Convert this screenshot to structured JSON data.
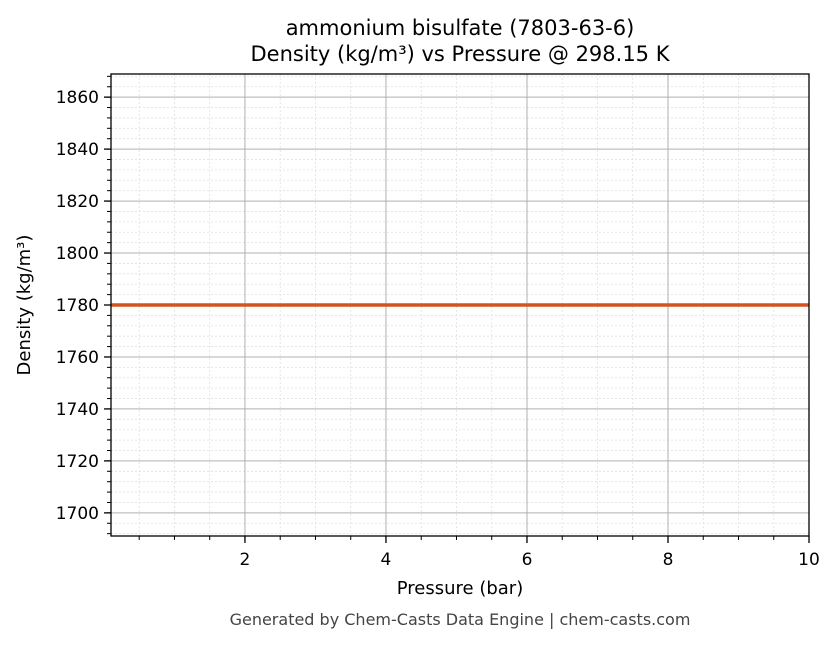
{
  "chart_data": {
    "type": "line",
    "title_line1": "ammonium bisulfate (7803-63-6)",
    "title_line2": "Density (kg/m³) vs Pressure @ 298.15 K",
    "xlabel": "Pressure (bar)",
    "ylabel": "Density (kg/m³)",
    "xlim": [
      0.1,
      10
    ],
    "ylim": [
      1691.1,
      1868.9
    ],
    "xticks": [
      2,
      4,
      6,
      8,
      10
    ],
    "yticks": [
      1700,
      1720,
      1740,
      1760,
      1780,
      1800,
      1820,
      1840,
      1860
    ],
    "x_minor_step": 0.5,
    "y_minor_step": 4,
    "grid": true,
    "series": [
      {
        "x": [
          0.1,
          10
        ],
        "y": [
          1780,
          1780
        ],
        "color": "#d4541f"
      }
    ]
  },
  "footer": "Generated by Chem-Casts Data Engine | chem-casts.com"
}
